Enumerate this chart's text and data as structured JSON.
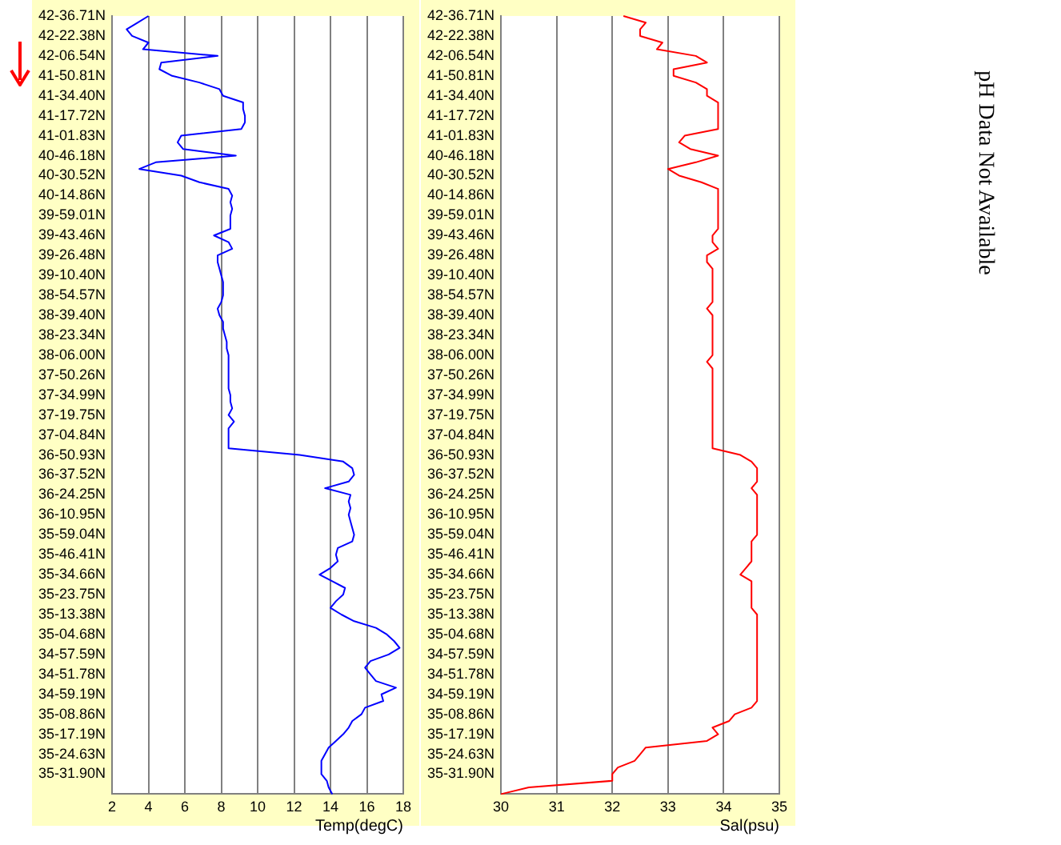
{
  "chart_data": [
    {
      "type": "line",
      "orientation": "horizontal",
      "xlabel": "Temp(degC)",
      "xlim": [
        2,
        18
      ],
      "xticks": [
        2,
        4,
        6,
        8,
        10,
        12,
        14,
        16,
        18
      ],
      "grid": "x",
      "marker": "none",
      "categories": [
        "42-36.71N",
        null,
        null,
        "42-22.38N",
        null,
        null,
        "42-06.54N",
        null,
        null,
        "41-50.81N",
        null,
        null,
        "41-34.40N",
        null,
        null,
        "41-17.72N",
        null,
        null,
        "41-01.83N",
        null,
        null,
        "40-46.18N",
        null,
        null,
        "40-30.52N",
        null,
        null,
        "40-14.86N",
        null,
        null,
        "39-59.01N",
        null,
        null,
        "39-43.46N",
        null,
        null,
        "39-26.48N",
        null,
        null,
        "39-10.40N",
        null,
        null,
        "38-54.57N",
        null,
        null,
        "38-39.40N",
        null,
        null,
        "38-23.34N",
        null,
        null,
        "38-06.00N",
        null,
        null,
        "37-50.26N",
        null,
        null,
        "37-34.99N",
        null,
        null,
        "37-19.75N",
        null,
        null,
        "37-04.84N",
        null,
        null,
        "36-50.93N",
        null,
        null,
        "36-37.52N",
        null,
        null,
        "36-24.25N",
        null,
        null,
        "36-10.95N",
        null,
        null,
        "35-59.04N",
        null,
        null,
        "35-46.41N",
        null,
        null,
        "35-34.66N",
        null,
        null,
        "35-23.75N",
        null,
        null,
        "35-13.38N",
        null,
        null,
        "35-04.68N",
        null,
        null,
        "34-57.59N",
        null,
        null,
        "34-51.78N",
        null,
        null,
        "34-59.19N",
        null,
        null,
        "35-08.86N",
        null,
        null,
        "35-17.19N",
        null,
        null,
        "35-24.63N",
        null,
        null,
        "35-31.90N",
        null,
        null,
        null
      ],
      "series": [
        {
          "color": "#0000ff",
          "values": [
            4.0,
            3.4,
            2.8,
            3.1,
            4.0,
            3.7,
            7.8,
            4.7,
            4.6,
            5.3,
            6.8,
            7.9,
            8.1,
            9.2,
            9.2,
            9.3,
            9.3,
            9.1,
            5.8,
            5.6,
            5.9,
            8.8,
            4.4,
            3.5,
            5.8,
            6.8,
            8.4,
            8.6,
            8.5,
            8.6,
            8.5,
            8.5,
            8.5,
            7.6,
            8.4,
            8.6,
            7.8,
            7.8,
            7.9,
            8.0,
            8.1,
            8.1,
            8.1,
            8.0,
            7.8,
            7.9,
            8.1,
            8.1,
            8.2,
            8.3,
            8.3,
            8.4,
            8.4,
            8.4,
            8.4,
            8.4,
            8.4,
            8.5,
            8.5,
            8.6,
            8.4,
            8.7,
            8.4,
            8.4,
            8.4,
            8.4,
            12.3,
            14.7,
            15.2,
            15.3,
            15.0,
            13.7,
            15.1,
            15.0,
            15.1,
            15.0,
            15.1,
            15.2,
            15.3,
            15.2,
            14.4,
            14.3,
            14.4,
            14.0,
            13.4,
            14.1,
            14.8,
            14.7,
            14.3,
            14.0,
            14.6,
            15.3,
            16.5,
            17.1,
            17.5,
            17.8,
            17.2,
            16.2,
            15.9,
            16.2,
            16.5,
            17.6,
            16.8,
            16.9,
            15.9,
            15.7,
            15.2,
            15.0,
            14.7,
            14.3,
            13.9,
            13.7,
            13.5,
            13.5,
            13.5,
            13.8,
            13.9,
            14.1
          ]
        }
      ]
    },
    {
      "type": "line",
      "orientation": "horizontal",
      "xlabel": "Sal(psu)",
      "xlim": [
        30,
        35
      ],
      "xticks": [
        30,
        31,
        32,
        33,
        34,
        35
      ],
      "grid": "x",
      "marker": "none",
      "categories": [
        "42-36.71N",
        null,
        null,
        "42-22.38N",
        null,
        null,
        "42-06.54N",
        null,
        null,
        "41-50.81N",
        null,
        null,
        "41-34.40N",
        null,
        null,
        "41-17.72N",
        null,
        null,
        "41-01.83N",
        null,
        null,
        "40-46.18N",
        null,
        null,
        "40-30.52N",
        null,
        null,
        "40-14.86N",
        null,
        null,
        "39-59.01N",
        null,
        null,
        "39-43.46N",
        null,
        null,
        "39-26.48N",
        null,
        null,
        "39-10.40N",
        null,
        null,
        "38-54.57N",
        null,
        null,
        "38-39.40N",
        null,
        null,
        "38-23.34N",
        null,
        null,
        "38-06.00N",
        null,
        null,
        "37-50.26N",
        null,
        null,
        "37-34.99N",
        null,
        null,
        "37-19.75N",
        null,
        null,
        "37-04.84N",
        null,
        null,
        "36-50.93N",
        null,
        null,
        "36-37.52N",
        null,
        null,
        "36-24.25N",
        null,
        null,
        "36-10.95N",
        null,
        null,
        "35-59.04N",
        null,
        null,
        "35-46.41N",
        null,
        null,
        "35-34.66N",
        null,
        null,
        "35-23.75N",
        null,
        null,
        "35-13.38N",
        null,
        null,
        "35-04.68N",
        null,
        null,
        "34-57.59N",
        null,
        null,
        "34-51.78N",
        null,
        null,
        "34-59.19N",
        null,
        null,
        "35-08.86N",
        null,
        null,
        "35-17.19N",
        null,
        null,
        "35-24.63N",
        null,
        null,
        "35-31.90N",
        null,
        null,
        null
      ],
      "series": [
        {
          "color": "#ff0000",
          "values": [
            32.2,
            32.6,
            32.5,
            32.5,
            32.9,
            32.8,
            33.5,
            33.7,
            33.1,
            33.1,
            33.5,
            33.7,
            33.7,
            33.9,
            33.9,
            33.9,
            33.9,
            33.9,
            33.3,
            33.2,
            33.4,
            33.9,
            33.5,
            33.0,
            33.2,
            33.6,
            33.9,
            33.9,
            33.9,
            33.9,
            33.9,
            33.9,
            33.9,
            33.8,
            33.8,
            33.9,
            33.7,
            33.7,
            33.8,
            33.8,
            33.8,
            33.8,
            33.8,
            33.8,
            33.7,
            33.8,
            33.8,
            33.8,
            33.8,
            33.8,
            33.8,
            33.8,
            33.7,
            33.8,
            33.8,
            33.8,
            33.8,
            33.8,
            33.8,
            33.8,
            33.8,
            33.8,
            33.8,
            33.8,
            33.8,
            33.8,
            34.3,
            34.5,
            34.6,
            34.6,
            34.6,
            34.5,
            34.6,
            34.6,
            34.6,
            34.6,
            34.6,
            34.6,
            34.6,
            34.5,
            34.5,
            34.5,
            34.5,
            34.4,
            34.3,
            34.5,
            34.5,
            34.5,
            34.5,
            34.5,
            34.6,
            34.6,
            34.6,
            34.6,
            34.6,
            34.6,
            34.6,
            34.6,
            34.6,
            34.6,
            34.6,
            34.6,
            34.6,
            34.6,
            34.5,
            34.2,
            34.1,
            33.8,
            33.9,
            33.7,
            32.6,
            32.5,
            32.4,
            32.1,
            32.0,
            32.0,
            30.5,
            30.0
          ]
        }
      ]
    },
    {
      "type": "other",
      "title": "pH Data Not Available"
    }
  ]
}
